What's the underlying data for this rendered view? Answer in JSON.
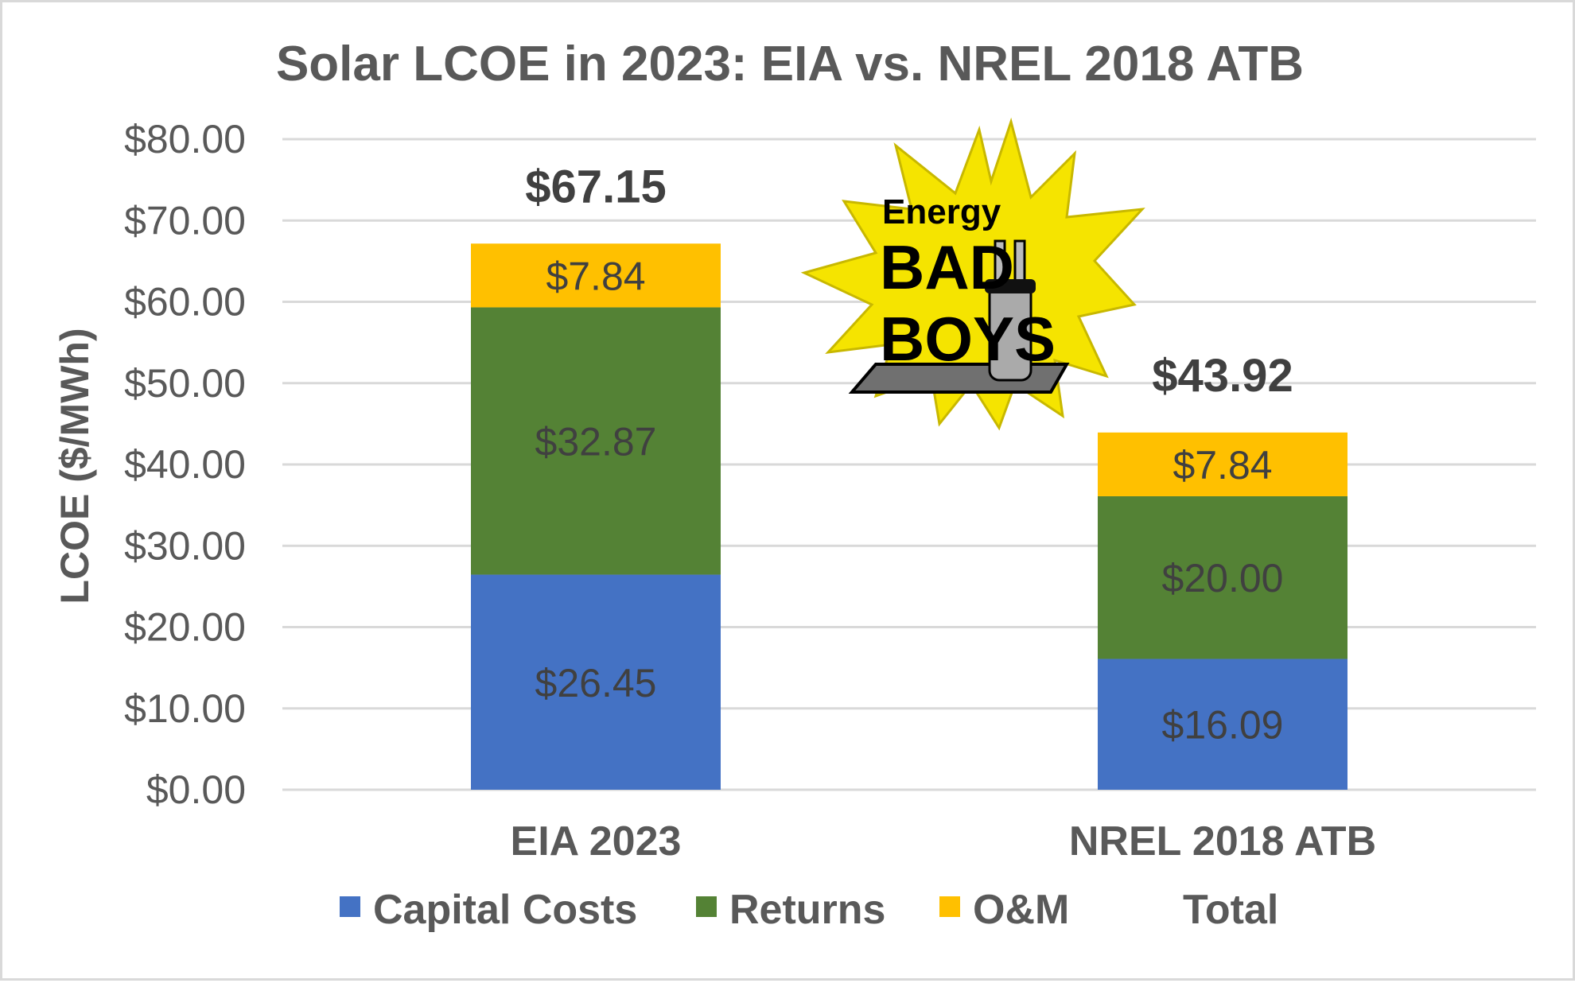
{
  "chart_data": {
    "type": "bar",
    "stacked": true,
    "title": "Solar LCOE in 2023: EIA vs. NREL 2018 ATB",
    "xlabel": "",
    "ylabel": "LCOE ($/MWh)",
    "ylim": [
      0,
      80
    ],
    "yticks": [
      0,
      10,
      20,
      30,
      40,
      50,
      60,
      70,
      80
    ],
    "ytick_labels": [
      "$0.00",
      "$10.00",
      "$20.00",
      "$30.00",
      "$40.00",
      "$50.00",
      "$60.00",
      "$70.00",
      "$80.00"
    ],
    "categories": [
      "EIA 2023",
      "NREL 2018 ATB"
    ],
    "series": [
      {
        "name": "Capital Costs",
        "color": "#4472c4",
        "values": [
          26.45,
          16.09
        ],
        "labels": [
          "$26.45",
          "$16.09"
        ]
      },
      {
        "name": "Returns",
        "color": "#548235",
        "values": [
          32.87,
          20.0
        ],
        "labels": [
          "$32.87",
          "$20.00"
        ]
      },
      {
        "name": "O&M",
        "color": "#ffc000",
        "values": [
          7.84,
          7.84
        ],
        "labels": [
          "$7.84",
          "$7.84"
        ]
      }
    ],
    "totals": {
      "name": "Total",
      "values": [
        67.15,
        43.92
      ],
      "labels": [
        "$67.15",
        "$43.92"
      ]
    },
    "grid": true,
    "legend": "bottom"
  },
  "logo": {
    "line1": "Energy",
    "line2": "BAD",
    "line3": "BOYS"
  }
}
